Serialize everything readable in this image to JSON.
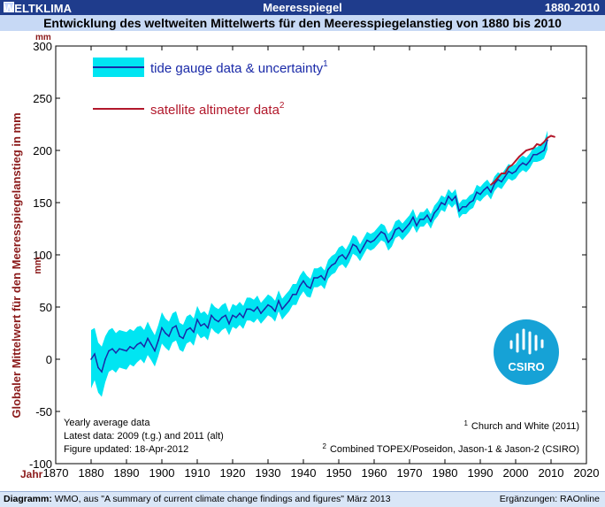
{
  "header": {
    "brand": "WELTKLIMA",
    "topic": "Meeresspiegel",
    "years": "1880-2010",
    "subtitle": "Entwicklung des weltweiten Mittelwerts für den Meeresspiegelanstieg von 1880 bis 2010"
  },
  "footer": {
    "left_prefix": "Diagramm:",
    "left_text": " WMO,  aus \"A summary of current climate change findings and figures\" März 2013",
    "right_text": "Ergänzungen: RAOnline"
  },
  "chart_data": {
    "type": "line",
    "ylabel": "Globaler Mittelwert für den Meeresspiegelanstieg in mm",
    "y_unit_top": "mm",
    "y_unit_side": "mm",
    "x_unit": "Jahr",
    "xlim": [
      1870,
      2020
    ],
    "ylim": [
      -100,
      300
    ],
    "x_ticks": [
      1870,
      1880,
      1890,
      1900,
      1910,
      1920,
      1930,
      1940,
      1950,
      1960,
      1970,
      1980,
      1990,
      2000,
      2010,
      2020
    ],
    "y_ticks": [
      -100,
      -50,
      0,
      50,
      100,
      150,
      200,
      250,
      300
    ],
    "grid": false,
    "legend": {
      "position": "top-left",
      "tide_label": "tide gauge data & uncertainty",
      "tide_sup": "1",
      "sat_label": "satellite altimeter data",
      "sat_sup": "2"
    },
    "colors": {
      "tide_line": "#1a2aa8",
      "tide_band": "#00e5f2",
      "satellite": "#b2182b",
      "text_dark_red": "#8b1a1a"
    },
    "notes": {
      "left": [
        "Yearly average data",
        "Latest data: 2009 (t.g.) and 2011 (alt)",
        "Figure updated: 18-Apr-2012"
      ],
      "right1": "Church and White (2011)",
      "right1_sup": "1",
      "right2": "Combined TOPEX/Poseidon, Jason-1 & Jason-2 (CSIRO)",
      "right2_sup": "2"
    },
    "logo_text": "CSIRO",
    "series": [
      {
        "name": "tide gauge data & uncertainty",
        "x": [
          1880,
          1881,
          1882,
          1883,
          1884,
          1885,
          1886,
          1887,
          1888,
          1889,
          1890,
          1891,
          1892,
          1893,
          1894,
          1895,
          1896,
          1897,
          1898,
          1899,
          1900,
          1901,
          1902,
          1903,
          1904,
          1905,
          1906,
          1907,
          1908,
          1909,
          1910,
          1911,
          1912,
          1913,
          1914,
          1915,
          1916,
          1917,
          1918,
          1919,
          1920,
          1921,
          1922,
          1923,
          1924,
          1925,
          1926,
          1927,
          1928,
          1929,
          1930,
          1931,
          1932,
          1933,
          1934,
          1935,
          1936,
          1937,
          1938,
          1939,
          1940,
          1941,
          1942,
          1943,
          1944,
          1945,
          1946,
          1947,
          1948,
          1949,
          1950,
          1951,
          1952,
          1953,
          1954,
          1955,
          1956,
          1957,
          1958,
          1959,
          1960,
          1961,
          1962,
          1963,
          1964,
          1965,
          1966,
          1967,
          1968,
          1969,
          1970,
          1971,
          1972,
          1973,
          1974,
          1975,
          1976,
          1977,
          1978,
          1979,
          1980,
          1981,
          1982,
          1983,
          1984,
          1985,
          1986,
          1987,
          1988,
          1989,
          1990,
          1991,
          1992,
          1993,
          1994,
          1995,
          1996,
          1997,
          1998,
          1999,
          2000,
          2001,
          2002,
          2003,
          2004,
          2005,
          2006,
          2007,
          2008,
          2009
        ],
        "values": [
          0,
          5,
          -8,
          -12,
          0,
          8,
          10,
          6,
          10,
          9,
          8,
          12,
          10,
          14,
          16,
          12,
          20,
          14,
          8,
          18,
          30,
          25,
          22,
          30,
          32,
          22,
          20,
          28,
          30,
          26,
          38,
          32,
          34,
          30,
          42,
          38,
          36,
          40,
          42,
          34,
          42,
          40,
          44,
          40,
          48,
          48,
          46,
          50,
          44,
          48,
          52,
          50,
          46,
          56,
          48,
          52,
          56,
          62,
          62,
          70,
          75,
          70,
          68,
          78,
          78,
          80,
          76,
          86,
          90,
          92,
          98,
          100,
          96,
          102,
          110,
          108,
          102,
          108,
          114,
          112,
          114,
          118,
          122,
          120,
          112,
          116,
          124,
          126,
          122,
          126,
          130,
          136,
          128,
          134,
          134,
          138,
          132,
          140,
          144,
          150,
          148,
          156,
          152,
          156,
          142,
          146,
          146,
          150,
          152,
          160,
          158,
          162,
          165,
          160,
          168,
          172,
          170,
          175,
          180,
          178,
          180,
          185,
          188,
          186,
          190,
          196,
          196,
          198,
          200,
          210
        ],
        "uncertainty": [
          28,
          25,
          24,
          24,
          22,
          20,
          20,
          19,
          18,
          18,
          18,
          17,
          17,
          17,
          16,
          16,
          16,
          15,
          15,
          15,
          15,
          14,
          14,
          14,
          14,
          13,
          13,
          13,
          13,
          13,
          13,
          12,
          12,
          12,
          12,
          12,
          12,
          12,
          12,
          11,
          11,
          11,
          11,
          11,
          11,
          11,
          11,
          11,
          10,
          10,
          10,
          10,
          10,
          10,
          10,
          10,
          10,
          10,
          10,
          10,
          10,
          10,
          9,
          9,
          9,
          9,
          9,
          9,
          9,
          9,
          9,
          9,
          9,
          9,
          9,
          9,
          8,
          8,
          8,
          8,
          8,
          8,
          8,
          8,
          8,
          8,
          8,
          8,
          8,
          8,
          8,
          8,
          7,
          7,
          7,
          7,
          7,
          7,
          7,
          7,
          7,
          7,
          7,
          7,
          7,
          7,
          7,
          7,
          7,
          7,
          7,
          7,
          7,
          7,
          7,
          7,
          7,
          7,
          7,
          7,
          7,
          7,
          7,
          7,
          7,
          7,
          7,
          8,
          8,
          9
        ]
      },
      {
        "name": "satellite altimeter data",
        "x": [
          1993,
          1994,
          1995,
          1996,
          1997,
          1998,
          1999,
          2000,
          2001,
          2002,
          2003,
          2004,
          2005,
          2006,
          2007,
          2008,
          2009,
          2010,
          2011
        ],
        "values": [
          167,
          170,
          174,
          178,
          178,
          184,
          186,
          190,
          194,
          197,
          200,
          201,
          202,
          206,
          205,
          208,
          212,
          214,
          213
        ]
      }
    ]
  }
}
